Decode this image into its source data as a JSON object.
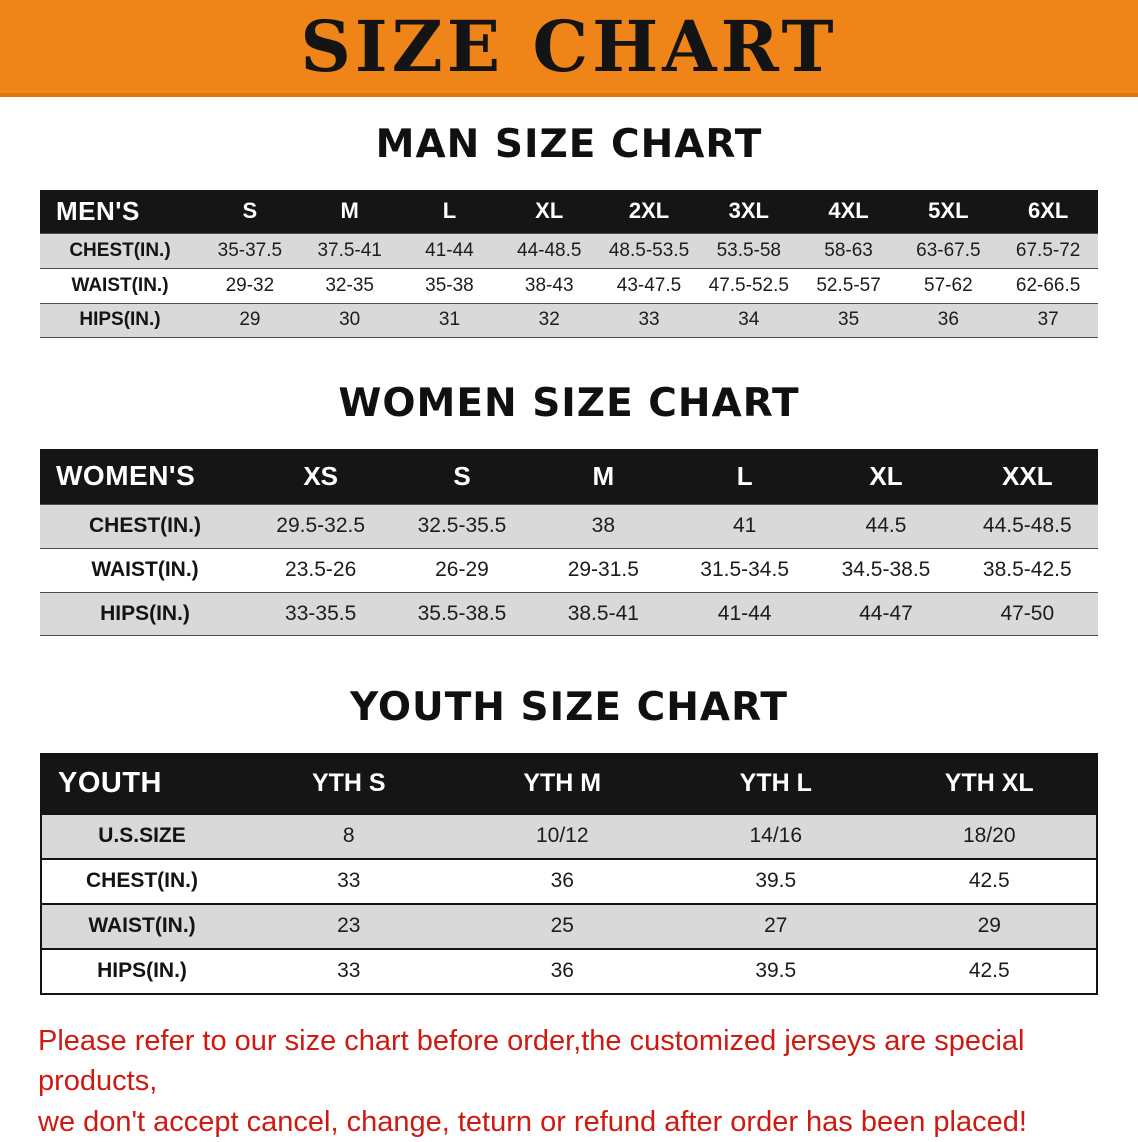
{
  "banner": {
    "title": "SIZE CHART"
  },
  "theme": {
    "banner_bg": "#ef8419",
    "header_bar_bg": "#151515",
    "stripe_gray": "#d9d9d9",
    "footer_red": "#cf1a12"
  },
  "sections": [
    {
      "heading": "MAN SIZE CHART",
      "table": {
        "header_label": "MEN'S",
        "columns": [
          "S",
          "M",
          "L",
          "XL",
          "2XL",
          "3XL",
          "4XL",
          "5XL",
          "6XL"
        ],
        "rows": [
          {
            "label": "CHEST(IN.)",
            "values": [
              "35-37.5",
              "37.5-41",
              "41-44",
              "44-48.5",
              "48.5-53.5",
              "53.5-58",
              "58-63",
              "63-67.5",
              "67.5-72"
            ]
          },
          {
            "label": "WAIST(IN.)",
            "values": [
              "29-32",
              "32-35",
              "35-38",
              "38-43",
              "43-47.5",
              "47.5-52.5",
              "52.5-57",
              "57-62",
              "62-66.5"
            ]
          },
          {
            "label": "HIPS(IN.)",
            "values": [
              "29",
              "30",
              "31",
              "32",
              "33",
              "34",
              "35",
              "36",
              "37"
            ]
          }
        ]
      }
    },
    {
      "heading": "WOMEN SIZE CHART",
      "table": {
        "header_label": "WOMEN'S",
        "columns": [
          "XS",
          "S",
          "M",
          "L",
          "XL",
          "XXL"
        ],
        "rows": [
          {
            "label": "CHEST(IN.)",
            "values": [
              "29.5-32.5",
              "32.5-35.5",
              "38",
              "41",
              "44.5",
              "44.5-48.5"
            ]
          },
          {
            "label": "WAIST(IN.)",
            "values": [
              "23.5-26",
              "26-29",
              "29-31.5",
              "31.5-34.5",
              "34.5-38.5",
              "38.5-42.5"
            ]
          },
          {
            "label": "HIPS(IN.)",
            "values": [
              "33-35.5",
              "35.5-38.5",
              "38.5-41",
              "41-44",
              "44-47",
              "47-50"
            ]
          }
        ]
      }
    },
    {
      "heading": "YOUTH SIZE CHART",
      "table": {
        "header_label": "YOUTH",
        "columns": [
          "YTH S",
          "YTH M",
          "YTH L",
          "YTH XL"
        ],
        "rows": [
          {
            "label": "U.S.SIZE",
            "values": [
              "8",
              "10/12",
              "14/16",
              "18/20"
            ]
          },
          {
            "label": "CHEST(IN.)",
            "values": [
              "33",
              "36",
              "39.5",
              "42.5"
            ]
          },
          {
            "label": "WAIST(IN.)",
            "values": [
              "23",
              "25",
              "27",
              "29"
            ]
          },
          {
            "label": "HIPS(IN.)",
            "values": [
              "33",
              "36",
              "39.5",
              "42.5"
            ]
          }
        ]
      }
    }
  ],
  "footer": {
    "line1": "Please refer to our size chart before order,the customized jerseys are special products,",
    "line2": "we don't accept cancel, change, teturn or refund after order has been placed!"
  }
}
